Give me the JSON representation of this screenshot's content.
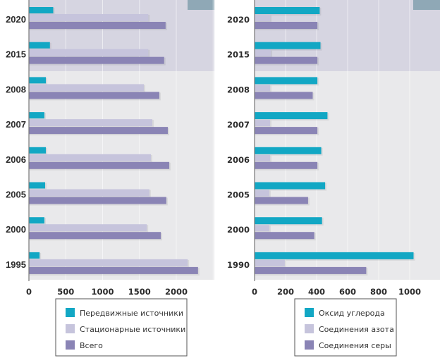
{
  "colors": {
    "series1": "#12a7c4",
    "series2": "#c6c4dc",
    "series3": "#8a84b5",
    "band": "#d6d5e1",
    "plot_bg": "#e9e9eb",
    "corner_block": "#8fa8b6",
    "axis": "#777777"
  },
  "chart_data": [
    {
      "type": "bar",
      "orientation": "horizontal",
      "title": "",
      "xlabel": "",
      "ylabel": "",
      "categories": [
        "2020",
        "2015",
        "2008",
        "2007",
        "2006",
        "2005",
        "2000",
        "1995"
      ],
      "highlighted_categories": [
        "2020",
        "2015"
      ],
      "series": [
        {
          "name": "Передвижные источники",
          "values": [
            330,
            285,
            230,
            210,
            230,
            220,
            210,
            145
          ]
        },
        {
          "name": "Стационарные источники",
          "values": [
            1620,
            1620,
            1560,
            1675,
            1655,
            1635,
            1600,
            2155
          ]
        },
        {
          "name": "Всего",
          "values": [
            1855,
            1835,
            1770,
            1885,
            1905,
            1865,
            1790,
            2295
          ]
        }
      ],
      "xlim": [
        0,
        2500
      ],
      "xticks": [
        "0",
        "500",
        "1000",
        "1500",
        "2000"
      ],
      "xtick_values": [
        0,
        500,
        1000,
        1500,
        2000
      ],
      "grid": true,
      "legend_position": "bottom"
    },
    {
      "type": "bar",
      "orientation": "horizontal",
      "title": "",
      "xlabel": "",
      "ylabel": "",
      "categories": [
        "2020",
        "2015",
        "2008",
        "2007",
        "2006",
        "2005",
        "2000",
        "1990"
      ],
      "highlighted_categories": [
        "2020",
        "2015"
      ],
      "series": [
        {
          "name": "Оксид углерода",
          "values": [
            420,
            425,
            405,
            470,
            430,
            455,
            435,
            1025
          ]
        },
        {
          "name": "Соединения азота",
          "values": [
            100,
            105,
            100,
            100,
            100,
            95,
            95,
            195
          ]
        },
        {
          "name": "Соединения серы",
          "values": [
            405,
            405,
            375,
            405,
            405,
            345,
            385,
            720
          ]
        }
      ],
      "xlim": [
        0,
        1200
      ],
      "xticks": [
        "0",
        "200",
        "400",
        "600",
        "800",
        "1000"
      ],
      "xtick_values": [
        0,
        200,
        400,
        600,
        800,
        1000
      ],
      "grid": true,
      "legend_position": "bottom"
    }
  ]
}
